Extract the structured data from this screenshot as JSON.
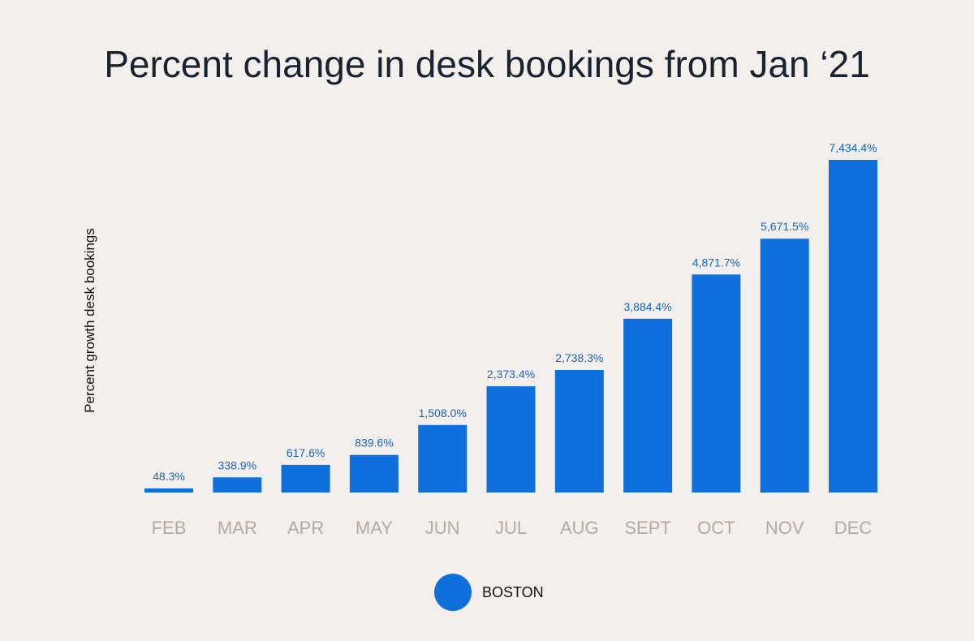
{
  "chart_data": {
    "type": "bar",
    "title": "Percent change in desk bookings from Jan ‘21",
    "ylabel": "Percent growth desk bookings",
    "xlabel": "",
    "categories": [
      "FEB",
      "MAR",
      "APR",
      "MAY",
      "JUN",
      "JUL",
      "AUG",
      "SEPT",
      "OCT",
      "NOV",
      "DEC"
    ],
    "series": [
      {
        "name": "BOSTON",
        "values": [
          48.3,
          338.9,
          617.6,
          839.6,
          1508.0,
          2373.4,
          2738.3,
          3884.4,
          4871.7,
          5671.5,
          7434.4
        ],
        "labels": [
          "48.3%",
          "338.9%",
          "617.6%",
          "839.6%",
          "1,508.0%",
          "2,373.4%",
          "2,738.3%",
          "3,884.4%",
          "4,871.7%",
          "5,671.5%",
          "7,434.4%"
        ]
      }
    ],
    "ylim": [
      0,
      7434.4
    ],
    "grid": false,
    "legend_position": "bottom-center",
    "colors": {
      "bar": "#0f6fdc",
      "value_label": "#1565c0",
      "tick_label": "#b5a9a1",
      "background": "#f2efec"
    }
  }
}
